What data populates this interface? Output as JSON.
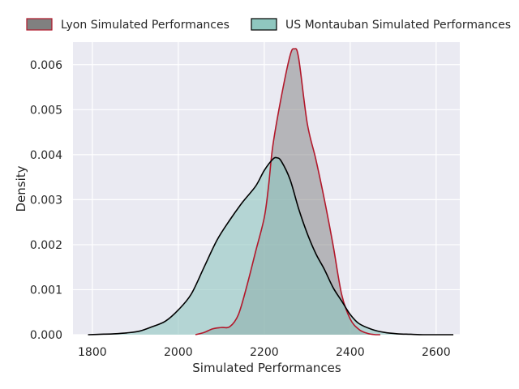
{
  "chart_data": {
    "type": "area",
    "xlabel": "Simulated Performances",
    "ylabel": "Density",
    "xlim": [
      1755,
      2655
    ],
    "ylim": [
      0,
      0.0065
    ],
    "x_ticks": [
      1800,
      2000,
      2200,
      2400,
      2600
    ],
    "x_tick_labels": [
      "1800",
      "2000",
      "2200",
      "2400",
      "2600"
    ],
    "y_ticks": [
      0.0,
      0.001,
      0.002,
      0.003,
      0.004,
      0.005,
      0.006
    ],
    "y_tick_labels": [
      "0.000",
      "0.001",
      "0.002",
      "0.003",
      "0.004",
      "0.005",
      "0.006"
    ],
    "grid": true,
    "legend_position": "top, above plot, horizontal",
    "series": [
      {
        "name": "Lyon Simulated Performances",
        "fill_color": "#808080",
        "line_color": "#b2182b",
        "x": [
          2040,
          2060,
          2080,
          2100,
          2120,
          2140,
          2160,
          2180,
          2200,
          2210,
          2220,
          2240,
          2260,
          2270,
          2280,
          2300,
          2320,
          2340,
          2360,
          2380,
          2400,
          2420,
          2440,
          2460,
          2470
        ],
        "y": [
          0.0,
          5e-05,
          0.00013,
          0.00016,
          0.00018,
          0.00045,
          0.0011,
          0.00185,
          0.0026,
          0.0033,
          0.0042,
          0.0053,
          0.0062,
          0.00635,
          0.00615,
          0.0047,
          0.0039,
          0.003,
          0.002,
          0.0009,
          0.00035,
          0.00012,
          3e-05,
          0.0,
          0.0
        ]
      },
      {
        "name": "US Montauban Simulated Performances",
        "fill_color": "#8fc7bf",
        "line_color": "#000000",
        "x": [
          1790,
          1820,
          1850,
          1880,
          1910,
          1940,
          1970,
          2000,
          2030,
          2060,
          2090,
          2120,
          2150,
          2180,
          2200,
          2220,
          2230,
          2240,
          2260,
          2280,
          2300,
          2320,
          2340,
          2360,
          2380,
          2400,
          2420,
          2450,
          2480,
          2510,
          2540,
          2570,
          2600,
          2640
        ],
        "y": [
          0.0,
          1e-05,
          2e-05,
          4e-05,
          8e-05,
          0.00018,
          0.0003,
          0.00055,
          0.0009,
          0.0015,
          0.0021,
          0.00255,
          0.00295,
          0.0033,
          0.00365,
          0.0039,
          0.00393,
          0.00385,
          0.00345,
          0.0028,
          0.00225,
          0.0018,
          0.00145,
          0.00105,
          0.00075,
          0.00045,
          0.00025,
          0.00012,
          5e-05,
          2e-05,
          1e-05,
          0.0,
          0.0,
          0.0
        ]
      }
    ]
  }
}
